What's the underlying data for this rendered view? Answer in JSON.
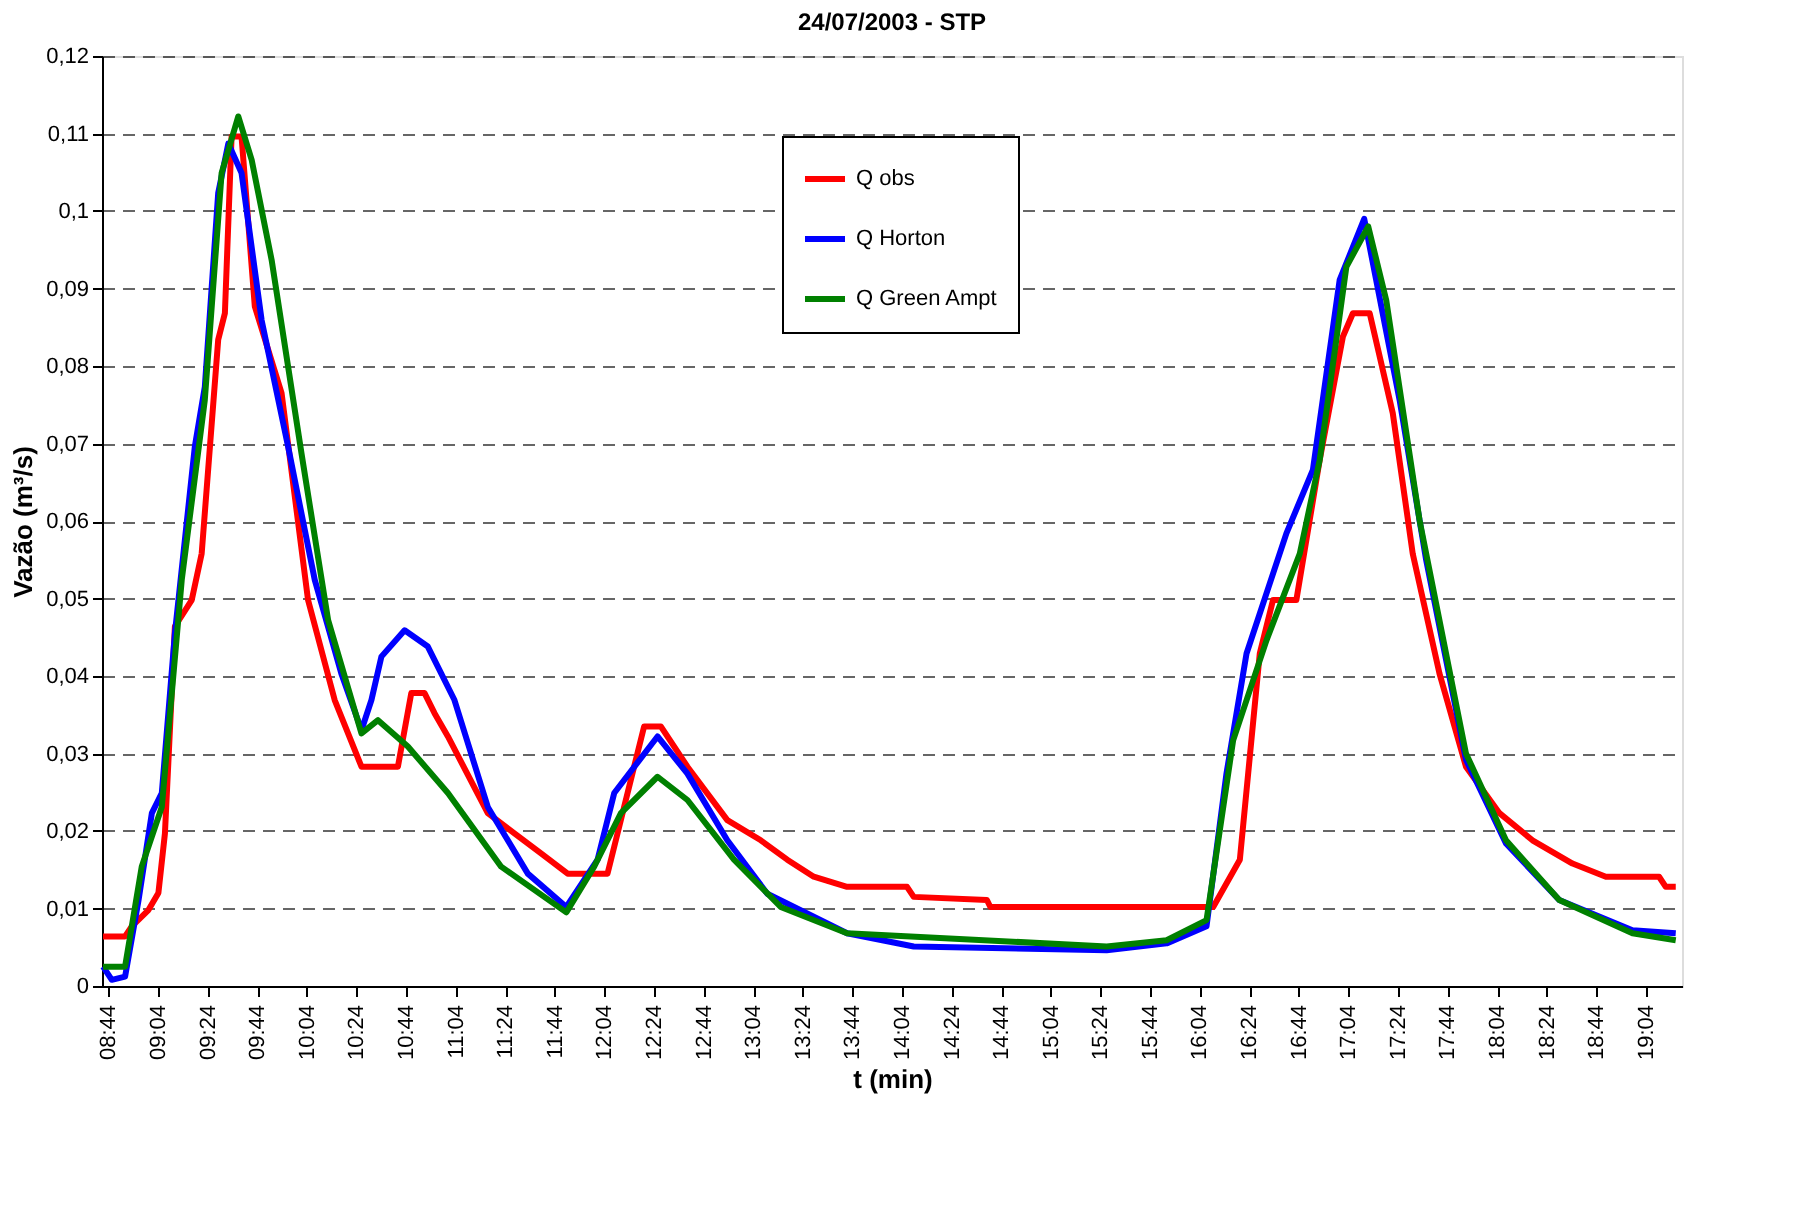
{
  "chart_data": {
    "type": "line",
    "title": "24/07/2003 - STP",
    "xlabel": "t (min)",
    "ylabel": "Vazão (m³/s)",
    "xlim": [
      8.69,
      19.31
    ],
    "ylim": [
      0,
      0.12
    ],
    "xticks": [
      {
        "value": 8.7333,
        "label": "08:44"
      },
      {
        "value": 9.0667,
        "label": "09:04"
      },
      {
        "value": 9.4,
        "label": "09:24"
      },
      {
        "value": 9.7333,
        "label": "09:44"
      },
      {
        "value": 10.0667,
        "label": "10:04"
      },
      {
        "value": 10.4,
        "label": "10:24"
      },
      {
        "value": 10.7333,
        "label": "10:44"
      },
      {
        "value": 11.0667,
        "label": "11:04"
      },
      {
        "value": 11.4,
        "label": "11:24"
      },
      {
        "value": 11.7333,
        "label": "11:44"
      },
      {
        "value": 12.0667,
        "label": "12:04"
      },
      {
        "value": 12.4,
        "label": "12:24"
      },
      {
        "value": 12.7333,
        "label": "12:44"
      },
      {
        "value": 13.0667,
        "label": "13:04"
      },
      {
        "value": 13.4,
        "label": "13:24"
      },
      {
        "value": 13.7333,
        "label": "13:44"
      },
      {
        "value": 14.0667,
        "label": "14:04"
      },
      {
        "value": 14.4,
        "label": "14:24"
      },
      {
        "value": 14.7333,
        "label": "14:44"
      },
      {
        "value": 15.0667,
        "label": "15:04"
      },
      {
        "value": 15.4,
        "label": "15:24"
      },
      {
        "value": 15.7333,
        "label": "15:44"
      },
      {
        "value": 16.0667,
        "label": "16:04"
      },
      {
        "value": 16.4,
        "label": "16:24"
      },
      {
        "value": 16.7333,
        "label": "16:44"
      },
      {
        "value": 17.0667,
        "label": "17:04"
      },
      {
        "value": 17.4,
        "label": "17:24"
      },
      {
        "value": 17.7333,
        "label": "17:44"
      },
      {
        "value": 18.0667,
        "label": "18:04"
      },
      {
        "value": 18.4,
        "label": "18:24"
      },
      {
        "value": 18.7333,
        "label": "18:44"
      },
      {
        "value": 19.0667,
        "label": "19:04"
      }
    ],
    "yticks": [
      {
        "value": 0,
        "label": "0"
      },
      {
        "value": 0.01,
        "label": "0,01"
      },
      {
        "value": 0.02,
        "label": "0,02"
      },
      {
        "value": 0.03,
        "label": "0,03"
      },
      {
        "value": 0.04,
        "label": "0,04"
      },
      {
        "value": 0.05,
        "label": "0,05"
      },
      {
        "value": 0.06,
        "label": "0,06"
      },
      {
        "value": 0.07,
        "label": "0,07"
      },
      {
        "value": 0.08,
        "label": "0,08"
      },
      {
        "value": 0.09,
        "label": "0,09"
      },
      {
        "value": 0.1,
        "label": "0,1"
      },
      {
        "value": 0.11,
        "label": "0,11"
      },
      {
        "value": 0.12,
        "label": "0,12"
      }
    ],
    "grid": "y",
    "legend": "top",
    "marker": "none",
    "line_style": "solid",
    "series": [
      {
        "name": "Q obs",
        "color": "#ff0000",
        "x": [
          8.697,
          8.845,
          8.89,
          9.002,
          9.069,
          9.113,
          9.18,
          9.293,
          9.36,
          9.471,
          9.516,
          9.561,
          9.628,
          9.717,
          9.897,
          10.075,
          10.254,
          10.434,
          10.679,
          10.769,
          10.858,
          10.925,
          11.015,
          11.283,
          11.462,
          11.641,
          11.82,
          12.088,
          12.334,
          12.446,
          12.625,
          12.893,
          13.118,
          13.296,
          13.474,
          13.698,
          14.101,
          14.146,
          14.638,
          14.661,
          15.443,
          16.159,
          16.338,
          16.472,
          16.561,
          16.718,
          16.875,
          17.031,
          17.098,
          17.211,
          17.366,
          17.5,
          17.68,
          17.858,
          18.083,
          18.305,
          18.574,
          18.798,
          19.156,
          19.201,
          19.268
        ],
        "values": [
          0.0064,
          0.0064,
          0.0077,
          0.0098,
          0.012,
          0.0197,
          0.0464,
          0.0498,
          0.0558,
          0.0834,
          0.0868,
          0.1096,
          0.1096,
          0.0877,
          0.0765,
          0.0498,
          0.0369,
          0.0283,
          0.0283,
          0.0378,
          0.0378,
          0.0352,
          0.0322,
          0.0223,
          0.0197,
          0.0171,
          0.0145,
          0.0145,
          0.0335,
          0.0335,
          0.0283,
          0.0214,
          0.0188,
          0.0163,
          0.0141,
          0.0128,
          0.0128,
          0.0115,
          0.0111,
          0.0102,
          0.0102,
          0.0102,
          0.0163,
          0.0429,
          0.0498,
          0.0498,
          0.0679,
          0.0838,
          0.0868,
          0.0868,
          0.0739,
          0.0558,
          0.0403,
          0.0283,
          0.0223,
          0.0188,
          0.0158,
          0.0141,
          0.0141,
          0.0128,
          0.0128
        ]
      },
      {
        "name": "Q Horton",
        "color": "#0000ff",
        "x": [
          8.697,
          8.756,
          8.845,
          8.935,
          9.025,
          9.092,
          9.18,
          9.314,
          9.381,
          9.471,
          9.539,
          9.628,
          9.763,
          9.941,
          10.12,
          10.299,
          10.434,
          10.501,
          10.568,
          10.724,
          10.88,
          11.059,
          11.283,
          11.552,
          11.811,
          12.021,
          12.133,
          12.424,
          12.625,
          12.893,
          13.162,
          13.698,
          14.146,
          15.443,
          15.846,
          16.114,
          16.248,
          16.383,
          16.651,
          16.829,
          17.009,
          17.174,
          17.412,
          17.59,
          17.858,
          18.127,
          18.485,
          18.977,
          19.268
        ],
        "values": [
          0.0025,
          0.0008,
          0.0012,
          0.011,
          0.0223,
          0.0249,
          0.0455,
          0.0696,
          0.0773,
          0.1023,
          0.1087,
          0.1049,
          0.0859,
          0.0696,
          0.0524,
          0.0403,
          0.033,
          0.0369,
          0.0425,
          0.0459,
          0.0438,
          0.0369,
          0.0231,
          0.0145,
          0.0102,
          0.0163,
          0.0249,
          0.0322,
          0.0274,
          0.0188,
          0.0119,
          0.0068,
          0.0051,
          0.0046,
          0.0055,
          0.0077,
          0.0274,
          0.0429,
          0.0584,
          0.0666,
          0.0911,
          0.099,
          0.0756,
          0.055,
          0.0292,
          0.0184,
          0.0111,
          0.0072,
          0.0068
        ]
      },
      {
        "name": "Q Green Ampt",
        "color": "#008000",
        "x": [
          8.697,
          8.845,
          8.957,
          9.092,
          9.226,
          9.381,
          9.494,
          9.606,
          9.696,
          9.83,
          10.031,
          10.21,
          10.434,
          10.545,
          10.746,
          11.015,
          11.373,
          11.811,
          11.998,
          12.178,
          12.424,
          12.625,
          12.938,
          13.252,
          13.698,
          15.443,
          15.846,
          16.114,
          16.293,
          16.517,
          16.741,
          16.875,
          17.054,
          17.201,
          17.322,
          17.546,
          17.858,
          18.127,
          18.485,
          18.977,
          19.268
        ],
        "values": [
          0.0025,
          0.0025,
          0.0154,
          0.0231,
          0.0524,
          0.0756,
          0.1049,
          0.1122,
          0.1066,
          0.0937,
          0.0687,
          0.0472,
          0.0326,
          0.0343,
          0.0309,
          0.0249,
          0.0154,
          0.0095,
          0.0154,
          0.0223,
          0.027,
          0.024,
          0.0163,
          0.0102,
          0.0068,
          0.0051,
          0.0059,
          0.0085,
          0.0317,
          0.0446,
          0.0558,
          0.0679,
          0.0928,
          0.098,
          0.0885,
          0.0601,
          0.03,
          0.0188,
          0.0111,
          0.0068,
          0.0059
        ]
      }
    ]
  }
}
